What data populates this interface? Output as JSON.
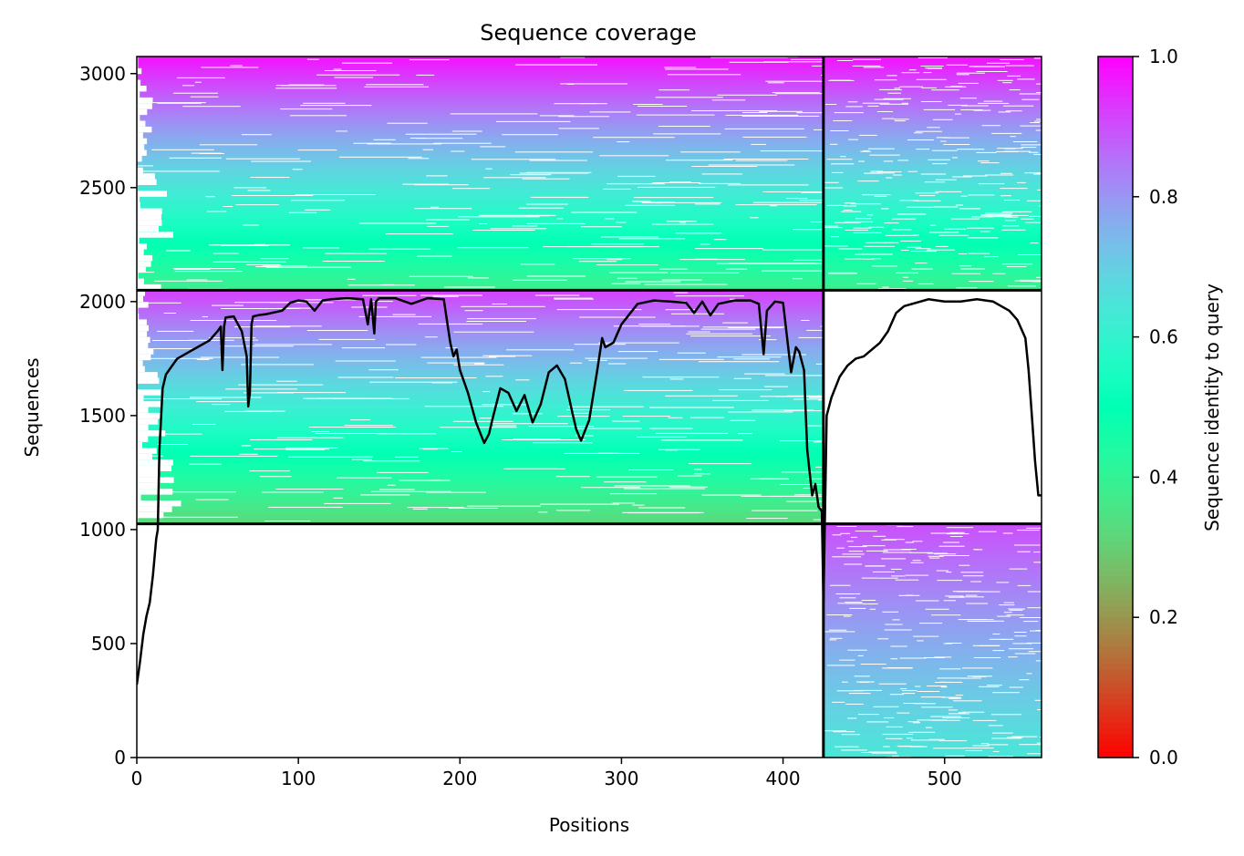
{
  "chart_data": {
    "type": "heatmap",
    "title": "Sequence coverage",
    "xlabel": "Positions",
    "ylabel": "Sequences",
    "xlim": [
      0,
      560
    ],
    "ylim": [
      0,
      3075
    ],
    "xticks": [
      0,
      100,
      200,
      300,
      400,
      500
    ],
    "yticks": [
      0,
      500,
      1000,
      1500,
      2000,
      2500,
      3000
    ],
    "grid": false,
    "chain_break_x": 425,
    "block_boundaries_y": [
      1025,
      2050
    ],
    "colormap": "rainbow_r",
    "colorbar": {
      "label": "Sequence identity to query",
      "range": [
        0,
        1
      ],
      "ticks": [
        0.0,
        0.2,
        0.4,
        0.6,
        0.8,
        1.0
      ],
      "tick_labels": [
        "0.0",
        "0.2",
        "0.4",
        "0.6",
        "0.8",
        "1.0"
      ]
    },
    "blocks": [
      {
        "x_range": [
          0,
          425
        ],
        "y_range": [
          2050,
          3075
        ],
        "identity_bottom": 0.38,
        "identity_top": 0.98,
        "filled": true
      },
      {
        "x_range": [
          425,
          560
        ],
        "y_range": [
          2050,
          3075
        ],
        "identity_bottom": 0.38,
        "identity_top": 0.98,
        "filled": true
      },
      {
        "x_range": [
          0,
          425
        ],
        "y_range": [
          1025,
          2050
        ],
        "identity_bottom": 0.32,
        "identity_top": 0.92,
        "filled": true
      },
      {
        "x_range": [
          425,
          560
        ],
        "y_range": [
          1025,
          2050
        ],
        "filled": false
      },
      {
        "x_range": [
          0,
          425
        ],
        "y_range": [
          0,
          1025
        ],
        "filled": false
      },
      {
        "x_range": [
          425,
          560
        ],
        "y_range": [
          0,
          1025
        ],
        "identity_bottom": 0.64,
        "identity_top": 0.9,
        "filled": true
      }
    ],
    "coverage_line": {
      "x": [
        0,
        2,
        4,
        6,
        8,
        10,
        12,
        13,
        14,
        16,
        18,
        20,
        25,
        30,
        35,
        40,
        45,
        50,
        52,
        53,
        54,
        55,
        60,
        65,
        68,
        69,
        70,
        71,
        72,
        75,
        80,
        90,
        95,
        100,
        105,
        110,
        115,
        120,
        130,
        140,
        143,
        145,
        147,
        148,
        150,
        160,
        170,
        180,
        190,
        194,
        196,
        198,
        200,
        205,
        210,
        215,
        218,
        220,
        225,
        230,
        235,
        240,
        245,
        250,
        255,
        260,
        265,
        270,
        272,
        275,
        280,
        285,
        288,
        290,
        295,
        300,
        310,
        320,
        330,
        340,
        345,
        350,
        355,
        360,
        370,
        380,
        385,
        388,
        390,
        395,
        400,
        405,
        408,
        410,
        413,
        415,
        418,
        420,
        422,
        424,
        425,
        427,
        430,
        435,
        440,
        445,
        450,
        455,
        460,
        465,
        470,
        475,
        480,
        490,
        500,
        510,
        520,
        530,
        540,
        545,
        550,
        552,
        554,
        556,
        558,
        560
      ],
      "y": [
        320,
        420,
        540,
        620,
        680,
        800,
        960,
        1000,
        1350,
        1620,
        1680,
        1700,
        1750,
        1770,
        1790,
        1810,
        1830,
        1870,
        1890,
        1700,
        1890,
        1930,
        1935,
        1870,
        1760,
        1540,
        1600,
        1900,
        1935,
        1940,
        1945,
        1960,
        1995,
        2005,
        2000,
        1960,
        2005,
        2010,
        2015,
        2010,
        1900,
        2010,
        1860,
        2000,
        2015,
        2015,
        1990,
        2015,
        2010,
        1820,
        1760,
        1790,
        1700,
        1600,
        1470,
        1380,
        1420,
        1480,
        1620,
        1600,
        1520,
        1590,
        1470,
        1550,
        1690,
        1720,
        1660,
        1500,
        1440,
        1390,
        1480,
        1700,
        1840,
        1800,
        1820,
        1900,
        1990,
        2005,
        2000,
        1995,
        1950,
        2000,
        1940,
        1990,
        2005,
        2005,
        1990,
        1770,
        1960,
        2000,
        1995,
        1690,
        1800,
        1780,
        1700,
        1350,
        1150,
        1200,
        1100,
        1080,
        680,
        1500,
        1580,
        1670,
        1720,
        1750,
        1760,
        1790,
        1820,
        1870,
        1950,
        1980,
        1990,
        2010,
        2000,
        2000,
        2010,
        2000,
        1960,
        1920,
        1840,
        1700,
        1500,
        1300,
        1150,
        1150
      ]
    }
  }
}
